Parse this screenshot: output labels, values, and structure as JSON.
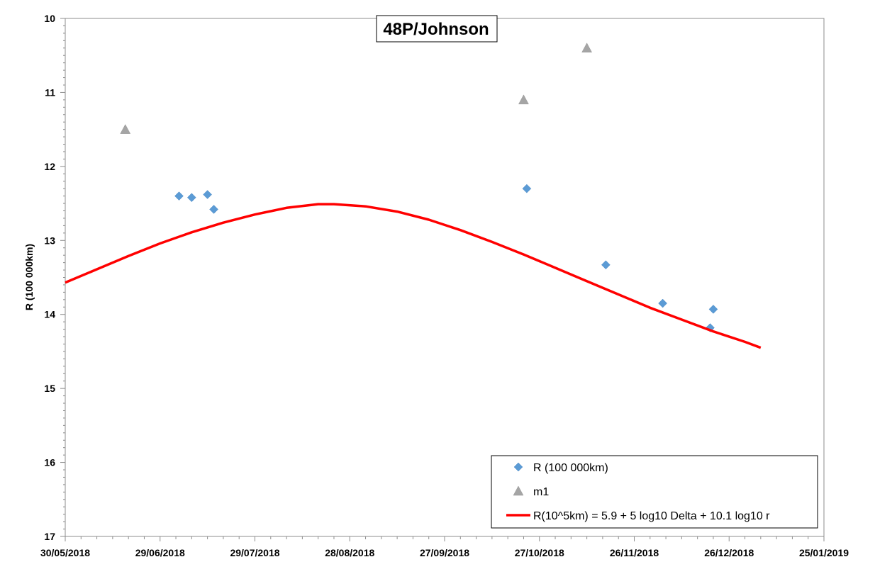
{
  "chart_data": {
    "type": "scatter",
    "title": "48P/Johnson",
    "xlabel": "",
    "ylabel": "R (100 000km)",
    "x_axis": {
      "type": "date",
      "min": "2018-05-30",
      "max": "2019-01-25",
      "tick_labels": [
        "30/05/2018",
        "29/06/2018",
        "29/07/2018",
        "28/08/2018",
        "27/09/2018",
        "27/10/2018",
        "26/11/2018",
        "26/12/2018",
        "25/01/2019"
      ]
    },
    "y_axis": {
      "reversed": true,
      "min": 10,
      "max": 17,
      "tick_labels": [
        "10",
        "11",
        "12",
        "13",
        "14",
        "15",
        "16",
        "17"
      ]
    },
    "grid": false,
    "legend_position": "bottom-right",
    "series": [
      {
        "name": "R (100 000km)",
        "kind": "scatter",
        "marker": "diamond",
        "color": "#5B9BD5",
        "points": [
          {
            "x": "2018-07-05",
            "y": 12.4
          },
          {
            "x": "2018-07-09",
            "y": 12.42
          },
          {
            "x": "2018-07-14",
            "y": 12.38
          },
          {
            "x": "2018-07-16",
            "y": 12.58
          },
          {
            "x": "2018-10-23",
            "y": 12.3
          },
          {
            "x": "2018-11-17",
            "y": 13.33
          },
          {
            "x": "2018-12-05",
            "y": 13.85
          },
          {
            "x": "2018-12-20",
            "y": 14.18
          },
          {
            "x": "2018-12-21",
            "y": 13.93
          }
        ]
      },
      {
        "name": "m1",
        "kind": "scatter",
        "marker": "triangle",
        "color": "#A5A5A5",
        "points": [
          {
            "x": "2018-06-18",
            "y": 11.5
          },
          {
            "x": "2018-10-22",
            "y": 11.1
          },
          {
            "x": "2018-11-11",
            "y": 10.4
          }
        ]
      },
      {
        "name": "R(10^5km) = 5.9 + 5 log10 Delta + 10.1 log10 r",
        "kind": "line",
        "color": "#FF0000",
        "points": [
          {
            "x": "2018-05-30",
            "y": 13.57
          },
          {
            "x": "2018-06-09",
            "y": 13.39
          },
          {
            "x": "2018-06-19",
            "y": 13.21
          },
          {
            "x": "2018-06-29",
            "y": 13.04
          },
          {
            "x": "2018-07-09",
            "y": 12.89
          },
          {
            "x": "2018-07-19",
            "y": 12.76
          },
          {
            "x": "2018-07-29",
            "y": 12.65
          },
          {
            "x": "2018-08-08",
            "y": 12.56
          },
          {
            "x": "2018-08-18",
            "y": 12.51
          },
          {
            "x": "2018-08-23",
            "y": 12.51
          },
          {
            "x": "2018-09-02",
            "y": 12.54
          },
          {
            "x": "2018-09-12",
            "y": 12.61
          },
          {
            "x": "2018-09-22",
            "y": 12.72
          },
          {
            "x": "2018-10-02",
            "y": 12.86
          },
          {
            "x": "2018-10-12",
            "y": 13.02
          },
          {
            "x": "2018-10-22",
            "y": 13.19
          },
          {
            "x": "2018-11-01",
            "y": 13.37
          },
          {
            "x": "2018-11-11",
            "y": 13.55
          },
          {
            "x": "2018-11-21",
            "y": 13.73
          },
          {
            "x": "2018-12-01",
            "y": 13.91
          },
          {
            "x": "2018-12-11",
            "y": 14.07
          },
          {
            "x": "2018-12-21",
            "y": 14.23
          },
          {
            "x": "2018-12-31",
            "y": 14.37
          },
          {
            "x": "2019-01-05",
            "y": 14.45
          }
        ]
      }
    ]
  }
}
